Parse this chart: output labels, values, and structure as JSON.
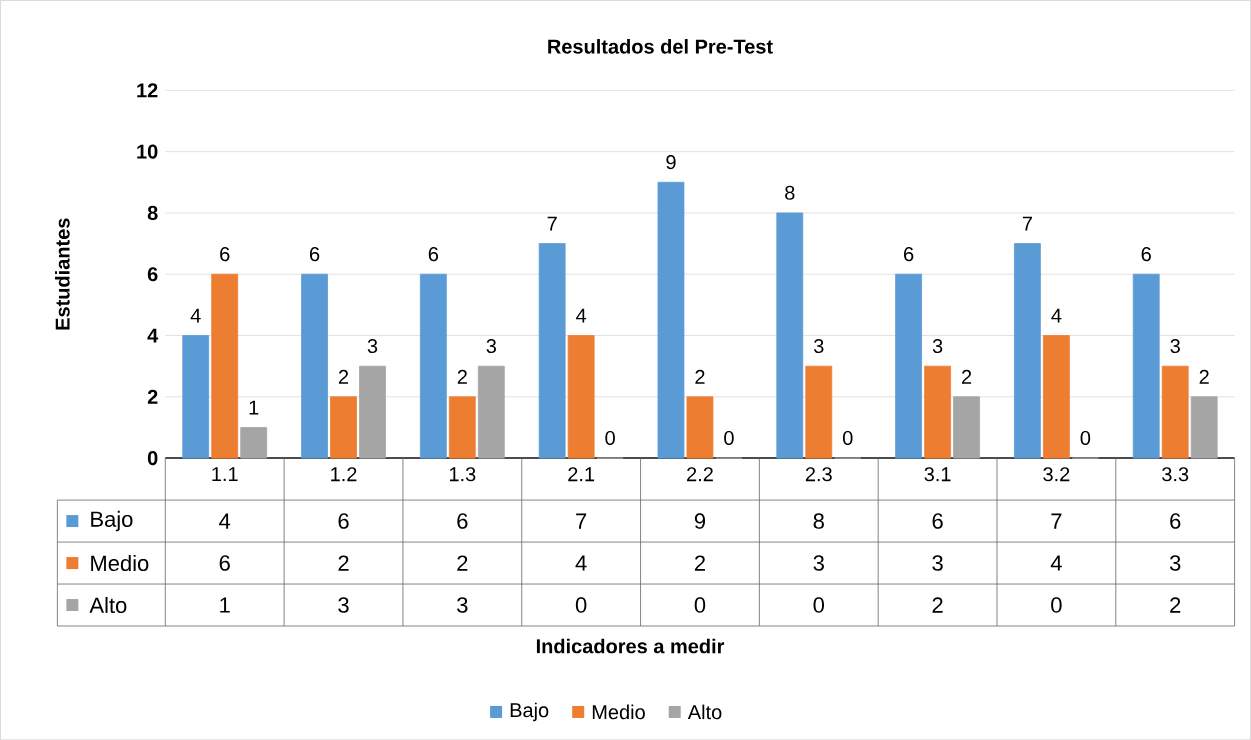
{
  "chart_data": {
    "type": "bar",
    "title": "Resultados del Pre-Test",
    "ylabel": "Estudiantes",
    "annotations": [
      "Indicadores a medir"
    ],
    "categories": [
      "1.1",
      "1.2",
      "1.3",
      "2.1",
      "2.2",
      "2.3",
      "3.1",
      "3.2",
      "3.3"
    ],
    "series": [
      {
        "name": "Bajo",
        "color": "#5b9bd5",
        "values": [
          4,
          6,
          6,
          7,
          9,
          8,
          6,
          7,
          6
        ],
        "value_labels": [
          "4",
          "6",
          "6",
          "7",
          "9",
          "8",
          "6",
          "7",
          "6"
        ]
      },
      {
        "name": "Medio",
        "color": "#ed7d31",
        "values": [
          6,
          2,
          2,
          4,
          2,
          3,
          3,
          4,
          3
        ],
        "value_labels": [
          "6",
          "2",
          "2",
          "4",
          "2",
          "3",
          "3",
          "4",
          "3"
        ]
      },
      {
        "name": "Alto",
        "color": "#a5a5a5",
        "values": [
          1,
          3,
          3,
          0,
          0,
          0,
          2,
          0,
          2
        ],
        "value_labels": [
          "1",
          "3",
          "3",
          "0",
          "0",
          "0",
          "2",
          "0",
          "2"
        ]
      }
    ],
    "ylim": [
      0,
      12
    ],
    "yticks": [
      0,
      2,
      4,
      6,
      8,
      10,
      12
    ],
    "grid": "y",
    "legend": "bottom"
  }
}
